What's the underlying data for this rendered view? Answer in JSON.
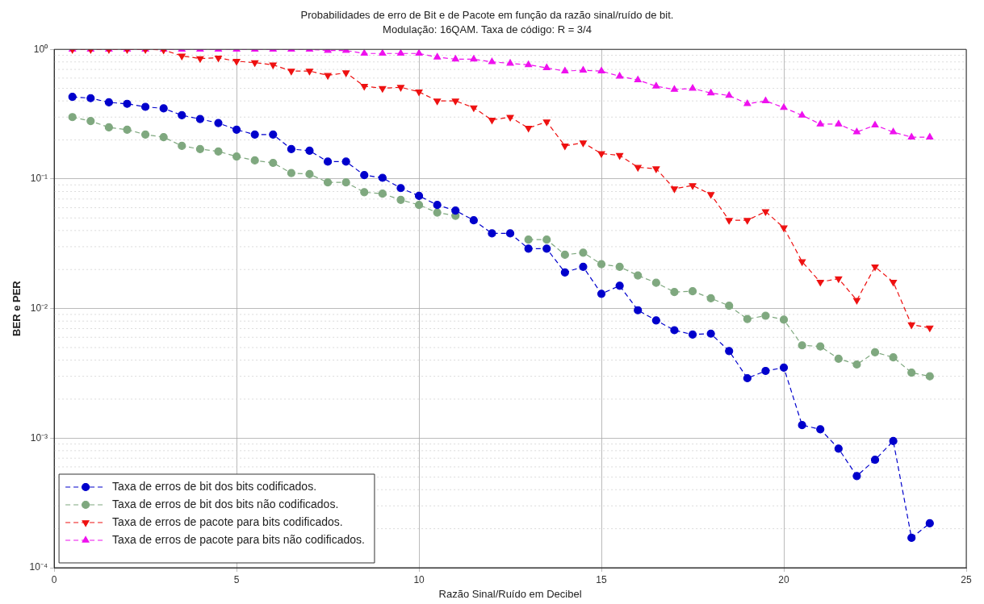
{
  "chart_data": {
    "type": "line",
    "title": "Probabilidades de erro de Bit e de Pacote em função da razão sinal/ruído de bit.",
    "subtitle": "Modulação: 16QAM. Taxa de código: R = 3/4",
    "xlabel": "Razão Sinal/Ruído em Decibel",
    "ylabel": "BER e PER",
    "x": [
      0.5,
      1,
      1.5,
      2,
      2.5,
      3,
      3.5,
      4,
      4.5,
      5,
      5.5,
      6,
      6.5,
      7,
      7.5,
      8,
      8.5,
      9,
      9.5,
      10,
      10.5,
      11,
      11.5,
      12,
      12.5,
      13,
      13.5,
      14,
      14.5,
      15,
      15.5,
      16,
      16.5,
      17,
      17.5,
      18,
      18.5,
      19,
      19.5,
      20,
      20.5,
      21,
      21.5,
      22,
      22.5,
      23,
      23.5,
      24
    ],
    "series": [
      {
        "name": "Taxa de erros de bit dos bits codificados.",
        "color": "#0000cc",
        "marker": "circle",
        "values": [
          0.43,
          0.42,
          0.39,
          0.38,
          0.36,
          0.35,
          0.31,
          0.29,
          0.27,
          0.24,
          0.22,
          0.22,
          0.17,
          0.165,
          0.136,
          0.136,
          0.107,
          0.102,
          0.085,
          0.074,
          0.063,
          0.057,
          0.048,
          0.038,
          0.038,
          0.029,
          0.029,
          0.019,
          0.021,
          0.013,
          0.015,
          0.0097,
          0.0081,
          0.0068,
          0.0063,
          0.0064,
          0.0047,
          0.0029,
          0.0033,
          0.0035,
          0.00126,
          0.00117,
          0.00083,
          0.00051,
          0.00068,
          0.00095,
          0.00017,
          0.00022
        ]
      },
      {
        "name": "Taxa de erros de bit dos bits não codificados.",
        "color": "#7fa87f",
        "marker": "circle",
        "values": [
          0.3,
          0.28,
          0.25,
          0.24,
          0.22,
          0.21,
          0.18,
          0.17,
          0.163,
          0.149,
          0.139,
          0.133,
          0.111,
          0.109,
          0.094,
          0.094,
          0.079,
          0.077,
          0.069,
          0.063,
          0.055,
          0.052,
          null,
          null,
          null,
          0.034,
          0.034,
          0.026,
          0.027,
          0.022,
          0.021,
          0.018,
          0.0158,
          0.0134,
          0.0136,
          0.012,
          0.0105,
          0.0083,
          0.0088,
          0.0082,
          0.0052,
          0.0051,
          0.0041,
          0.0037,
          0.0046,
          0.0042,
          0.0032,
          0.003
        ]
      },
      {
        "name": "Taxa de erros de pacote para bits codificados.",
        "color": "#ee1111",
        "marker": "triangle-down",
        "values": [
          1,
          1,
          1,
          1,
          1,
          0.99,
          0.89,
          0.85,
          0.86,
          0.81,
          0.79,
          0.76,
          0.68,
          0.68,
          0.63,
          0.66,
          0.52,
          0.5,
          0.51,
          0.47,
          0.4,
          0.4,
          0.355,
          0.285,
          0.3,
          0.247,
          0.276,
          0.18,
          0.19,
          0.157,
          0.152,
          0.123,
          0.12,
          0.084,
          0.089,
          0.076,
          0.048,
          0.048,
          0.056,
          0.042,
          0.023,
          0.016,
          0.017,
          0.0116,
          0.021,
          0.016,
          0.0075,
          0.0071
        ]
      },
      {
        "name": "Taxa de erros de pacote para bits não codificados.",
        "color": "#ee11ee",
        "marker": "triangle",
        "values": [
          1,
          1,
          1,
          1,
          1,
          1,
          1,
          1,
          1,
          1,
          1,
          1,
          1,
          1,
          0.98,
          0.98,
          0.93,
          0.93,
          0.93,
          0.93,
          0.87,
          0.84,
          0.84,
          0.8,
          0.78,
          0.76,
          0.72,
          0.68,
          0.69,
          0.68,
          0.62,
          0.58,
          0.52,
          0.49,
          0.5,
          0.46,
          0.44,
          0.38,
          0.4,
          0.355,
          0.31,
          0.265,
          0.265,
          0.23,
          0.26,
          0.23,
          0.21,
          0.21
        ]
      }
    ],
    "log": "y",
    "line_style": "dashed",
    "grid": true,
    "legend": "bottom left",
    "xlim": [
      0,
      25
    ],
    "xticks": [
      0,
      5,
      10,
      15,
      20,
      25
    ],
    "ylim": [
      0.0001,
      1
    ],
    "yticks": [
      {
        "value": 0.0001,
        "label": "10⁻⁴"
      },
      {
        "value": 0.001,
        "label": "10⁻³"
      },
      {
        "value": 0.01,
        "label": "10⁻²"
      },
      {
        "value": 0.1,
        "label": "10⁻¹"
      },
      {
        "value": 1,
        "label": "10⁰"
      }
    ]
  }
}
